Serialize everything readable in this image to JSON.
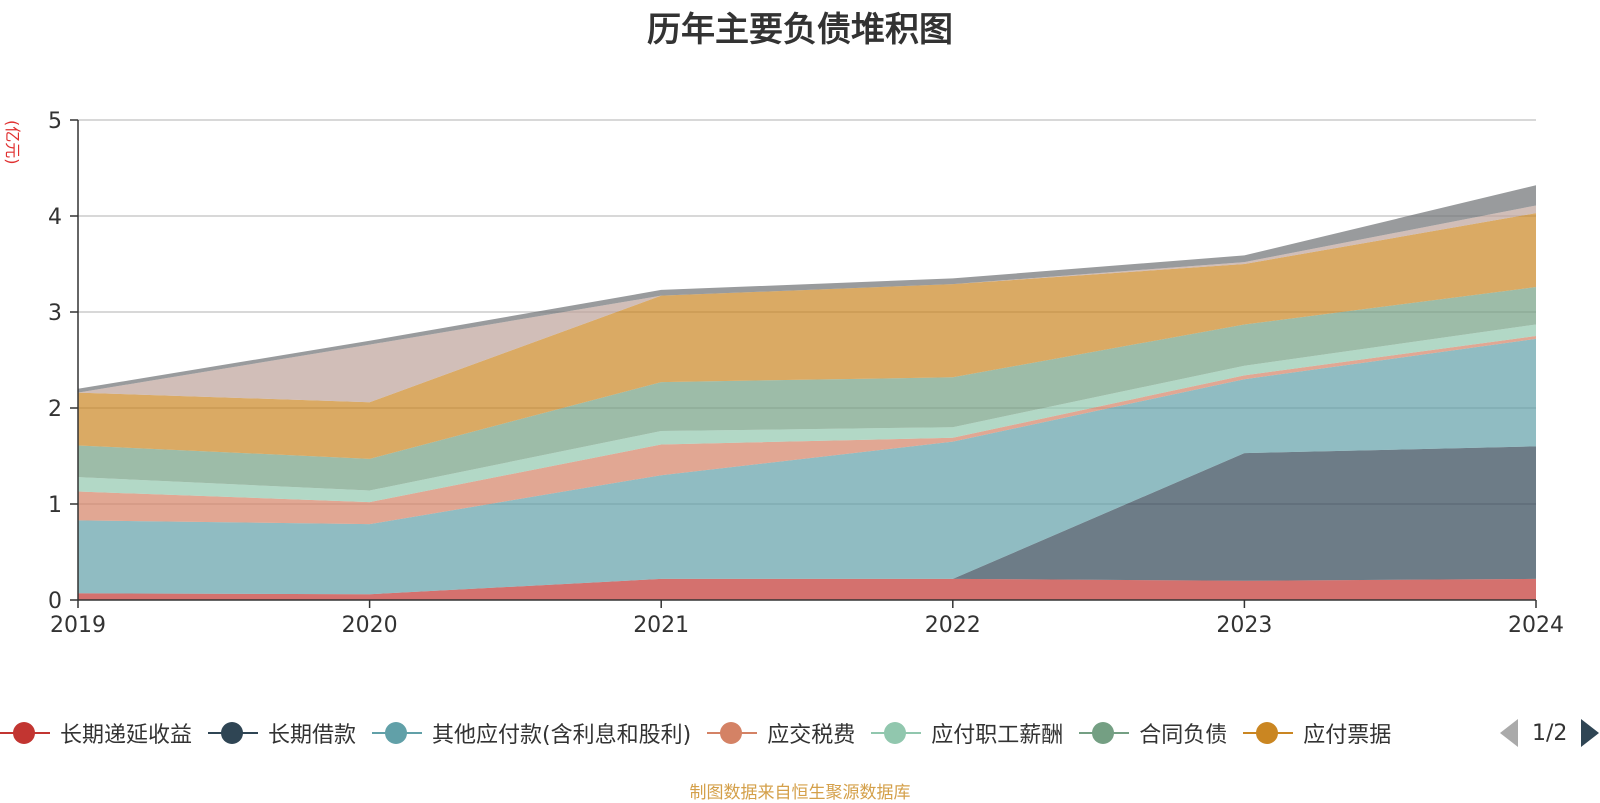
{
  "chart_data": {
    "type": "area",
    "stacked": true,
    "title": "历年主要负债堆积图",
    "y_unit": "(亿元)",
    "x": [
      "2019",
      "2020",
      "2021",
      "2022",
      "2023",
      "2024"
    ],
    "ylim": [
      0,
      5
    ],
    "y_ticks": [
      "0",
      "1",
      "2",
      "3",
      "4",
      "5"
    ],
    "grid": true,
    "series": [
      {
        "name": "长期递延收益",
        "color": "#c23531",
        "values": [
          0.07,
          0.06,
          0.22,
          0.22,
          0.2,
          0.22
        ]
      },
      {
        "name": "长期借款",
        "color": "#2f4554",
        "values": [
          0,
          0,
          0,
          0,
          1.33,
          1.38
        ]
      },
      {
        "name": "其他应付款(含利息和股利)",
        "color": "#61a0a8",
        "values": [
          0.76,
          0.73,
          1.08,
          1.43,
          0.77,
          1.12
        ]
      },
      {
        "name": "应交税费",
        "color": "#d48265",
        "values": [
          0.3,
          0.23,
          0.32,
          0.04,
          0.04,
          0.03
        ]
      },
      {
        "name": "应付职工薪酬",
        "color": "#91c7ae",
        "values": [
          0.15,
          0.12,
          0.14,
          0.11,
          0.1,
          0.12
        ]
      },
      {
        "name": "合同负债",
        "color": "#749f83",
        "values": [
          0.33,
          0.33,
          0.51,
          0.52,
          0.43,
          0.39
        ]
      },
      {
        "name": "应付票据",
        "color": "#ca8622",
        "values": [
          0.55,
          0.59,
          0.9,
          0.97,
          0.63,
          0.77
        ]
      },
      {
        "name": "",
        "color": "#bda29a",
        "values": [
          0,
          0.6,
          0,
          0,
          0.02,
          0.08
        ]
      },
      {
        "name": "",
        "color": "#6e7074",
        "values": [
          0.04,
          0.04,
          0.06,
          0.06,
          0.07,
          0.21
        ]
      }
    ],
    "legend_position": "bottom"
  },
  "legend": {
    "items": [
      "长期递延收益",
      "长期借款",
      "其他应付款(含利息和股利)",
      "应交税费",
      "应付职工薪酬",
      "合同负债",
      "应付票据"
    ],
    "page": "1/2"
  },
  "footer": {
    "source": "制图数据来自恒生聚源数据库"
  }
}
